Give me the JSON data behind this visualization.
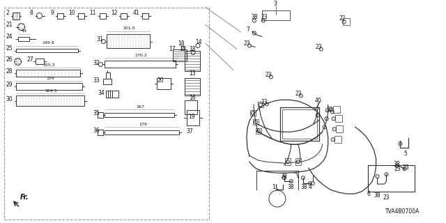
{
  "bg_color": "#ffffff",
  "diagram_color": "#333333",
  "light_gray": "#aaaaaa",
  "part_number_text": "TVA4B0700A",
  "border_color": "#999999",
  "text_color": "#111111",
  "figsize": [
    6.4,
    3.2
  ],
  "dpi": 100
}
